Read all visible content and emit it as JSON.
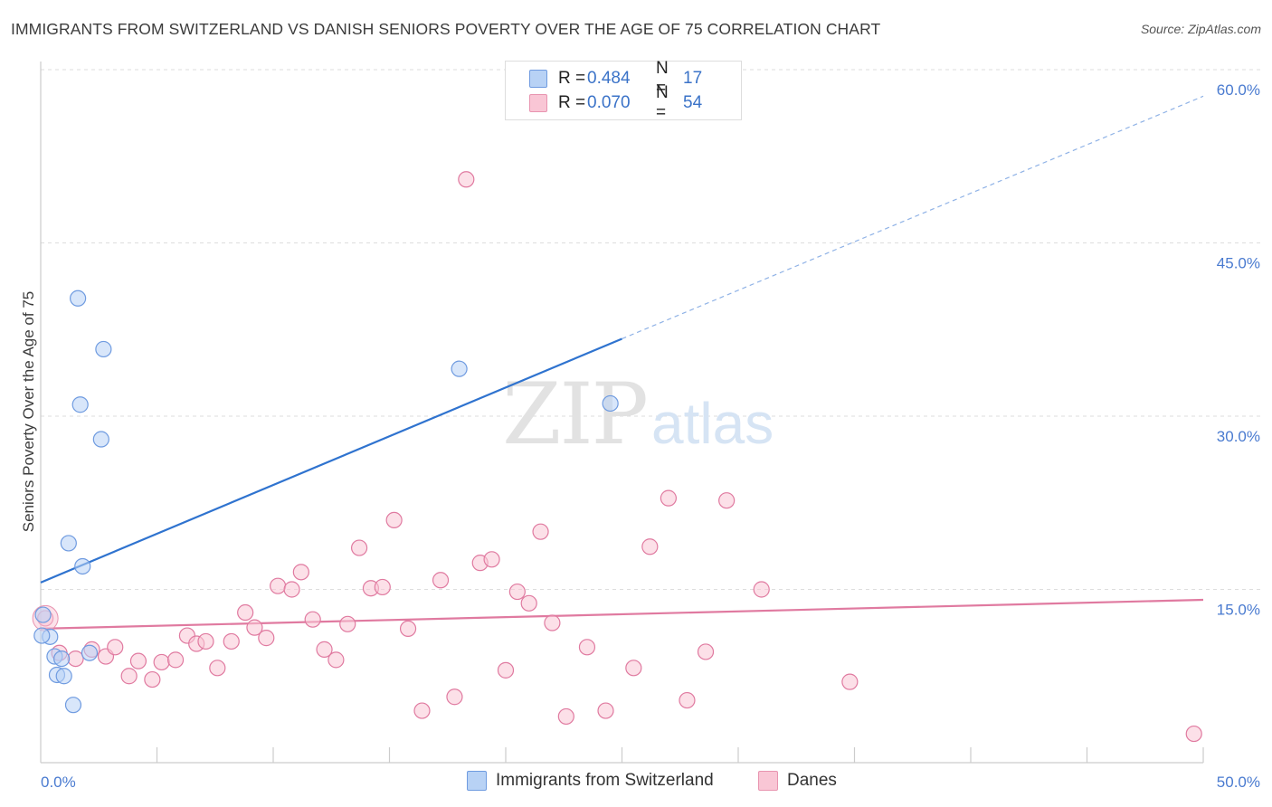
{
  "header": {
    "title": "IMMIGRANTS FROM SWITZERLAND VS DANISH SENIORS POVERTY OVER THE AGE OF 75 CORRELATION CHART",
    "source": "Source: ZipAtlas.com"
  },
  "watermark": {
    "zip": "ZIP",
    "atlas": "atlas"
  },
  "legend": {
    "series": [
      {
        "r_label": "R =",
        "r_value": "0.484",
        "n_label": "N =",
        "n_value": "17",
        "fill": "#b8d2f5",
        "stroke": "#6f9be0"
      },
      {
        "r_label": "R =",
        "r_value": "0.070",
        "n_label": "N =",
        "n_value": "54",
        "fill": "#f9c6d5",
        "stroke": "#e894b0"
      }
    ]
  },
  "bottom_legend": {
    "swiss": "Immigrants from Switzerland",
    "danes": "Danes"
  },
  "chart_data": {
    "type": "scatter",
    "title": "IMMIGRANTS FROM SWITZERLAND VS DANISH SENIORS POVERTY OVER THE AGE OF 75 CORRELATION CHART",
    "xlabel": "",
    "ylabel": "Seniors Poverty Over the Age of 75",
    "xlim": [
      0,
      50
    ],
    "ylim": [
      0,
      60
    ],
    "x_tick_labels": [
      "0.0%",
      "50.0%"
    ],
    "y_ticks": [
      15,
      30,
      45,
      60
    ],
    "y_tick_labels": [
      "15.0%",
      "30.0%",
      "45.0%",
      "60.0%"
    ],
    "grid": true,
    "series": [
      {
        "name": "Immigrants from Switzerland",
        "color": "#6f9be0",
        "fill": "#b8d2f5",
        "x": [
          0.1,
          0.4,
          0.6,
          0.7,
          0.9,
          1.0,
          1.2,
          1.4,
          1.6,
          1.7,
          1.8,
          2.1,
          2.6,
          2.7,
          18.0,
          24.5,
          0.05
        ],
        "y": [
          12.8,
          10.9,
          9.2,
          7.6,
          9.0,
          7.5,
          19.0,
          5.0,
          40.2,
          31.0,
          17.0,
          9.5,
          28.0,
          35.8,
          34.1,
          31.1,
          11.0
        ],
        "trend": {
          "x_start": 0,
          "y_start": 15.6,
          "x_solid_end": 25,
          "y_solid_end": 36.7,
          "x_end": 50,
          "y_end": 57.7
        }
      },
      {
        "name": "Danes",
        "color": "#e07aa0",
        "fill": "#f9c6d5",
        "x": [
          0.2,
          0.8,
          1.5,
          2.2,
          2.8,
          3.2,
          3.8,
          4.2,
          4.8,
          5.2,
          5.8,
          6.3,
          6.7,
          7.1,
          7.6,
          8.2,
          8.8,
          9.2,
          9.7,
          10.2,
          10.8,
          11.2,
          11.7,
          12.2,
          12.7,
          13.2,
          13.7,
          14.2,
          14.7,
          15.2,
          15.8,
          16.4,
          17.2,
          17.8,
          18.3,
          18.9,
          19.4,
          20.0,
          20.5,
          21.0,
          21.5,
          22.0,
          22.6,
          23.5,
          24.3,
          25.5,
          26.2,
          27.0,
          27.8,
          28.6,
          29.5,
          31.0,
          34.8,
          49.6
        ],
        "y": [
          12.5,
          9.5,
          9.0,
          9.8,
          9.2,
          10.0,
          7.5,
          8.8,
          7.2,
          8.7,
          8.9,
          11.0,
          10.3,
          10.5,
          8.2,
          10.5,
          13.0,
          11.7,
          10.8,
          15.3,
          15.0,
          16.5,
          12.4,
          9.8,
          8.9,
          12.0,
          18.6,
          15.1,
          15.2,
          21.0,
          11.6,
          4.5,
          15.8,
          5.7,
          50.5,
          17.3,
          17.6,
          8.0,
          14.8,
          13.8,
          20.0,
          12.1,
          4.0,
          10.0,
          4.5,
          8.2,
          18.7,
          22.9,
          5.4,
          9.6,
          22.7,
          15.0,
          7.0,
          2.5
        ],
        "trend": {
          "x_start": 0,
          "y_start": 11.6,
          "x_end": 50,
          "y_end": 14.1
        }
      }
    ]
  }
}
